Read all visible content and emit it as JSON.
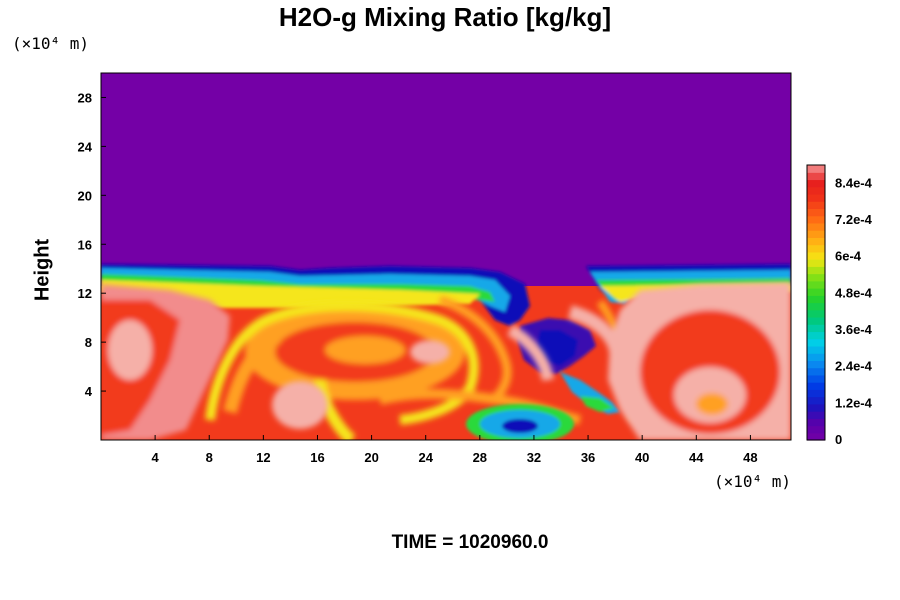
{
  "chart_data": {
    "type": "heatmap",
    "title": "H2O-g Mixing Ratio [kg/kg]",
    "ylabel": "Height",
    "xlabel": "",
    "x_units": "(×10⁴ m)",
    "y_units": "(×10⁴ m)",
    "xlim": [
      0,
      51
    ],
    "ylim": [
      0,
      30
    ],
    "x_ticks": [
      "4",
      "8",
      "12",
      "16",
      "20",
      "24",
      "28",
      "32",
      "36",
      "40",
      "44",
      "48"
    ],
    "y_ticks": [
      "4",
      "8",
      "12",
      "16",
      "20",
      "24",
      "28"
    ],
    "colorbar": {
      "min": 0,
      "max": 0.0009,
      "tick_labels": [
        "0",
        "1.2e-4",
        "2.4e-4",
        "3.6e-4",
        "4.8e-4",
        "6e-4",
        "7.2e-4",
        "8.4e-4"
      ],
      "tick_values": [
        0,
        0.00012,
        0.00024,
        0.00036,
        0.00048,
        0.0006,
        0.00072,
        0.00084
      ]
    },
    "field_summary": {
      "dry_layer_top_height": 13.5,
      "dry_layer_value": 0,
      "moist_layer_value_range": [
        0.0006,
        0.0009
      ],
      "eddy_centers": [
        {
          "x": 31,
          "y": 1.2,
          "value": 0.00015
        },
        {
          "x": 45.5,
          "y": 3,
          "value": 0.00075
        },
        {
          "x": 20,
          "y": 8,
          "value": 0.00065
        }
      ]
    }
  },
  "time_label": "TIME =",
  "time_value": "1020960.0"
}
